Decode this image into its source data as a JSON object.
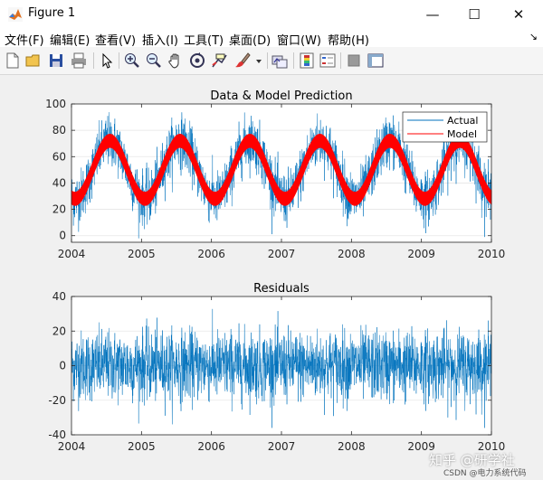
{
  "window": {
    "title": "Figure 1"
  },
  "window_buttons": {
    "minimize": "—",
    "maximize": "☐",
    "close": "✕"
  },
  "menu": {
    "items": [
      "文件(F)",
      "编辑(E)",
      "查看(V)",
      "插入(I)",
      "工具(T)",
      "桌面(D)",
      "窗口(W)",
      "帮助(H)"
    ],
    "more_arrow": "↘"
  },
  "toolbar": {
    "icons": [
      "new-figure-icon",
      "open-file-icon",
      "save-icon",
      "print-icon",
      "edit-plot-arrow-icon",
      "zoom-in-icon",
      "zoom-out-icon",
      "pan-hand-icon",
      "rotate-3d-icon",
      "data-cursor-icon",
      "brush-icon",
      "brush-dropdown-icon",
      "link-plot-icon",
      "colorbar-icon",
      "legend-icon",
      "hide-plot-tools-icon",
      "show-plot-tools-icon"
    ]
  },
  "colors": {
    "actual": "#0072bd",
    "model": "#ff0000"
  },
  "chart_data": [
    {
      "type": "line",
      "title": "Data & Model Prediction",
      "xlabel": "",
      "ylabel": "",
      "xlim": [
        2004,
        2010
      ],
      "ylim": [
        -5,
        100
      ],
      "xticks": [
        "2004",
        "2005",
        "2006",
        "2007",
        "2008",
        "2009",
        "2010"
      ],
      "yticks": [
        "0",
        "20",
        "40",
        "60",
        "80",
        "100"
      ],
      "legend": {
        "position": "top-right",
        "entries": [
          "Actual",
          "Model"
        ]
      },
      "series": [
        {
          "name": "Actual",
          "description": "daily observations, seasonal cycle ~25–75 with noise, min ~-2, max ~95"
        },
        {
          "name": "Model",
          "description": "seasonal sinusoid, trough ~28 in Jan, peak ~72 in Jul"
        }
      ],
      "model": {
        "mean": 50,
        "amplitude": 22,
        "band_halfwidth": 5,
        "peak_offset_years": 0.55
      },
      "actual_noise_sd": 10
    },
    {
      "type": "line",
      "title": "Residuals",
      "xlim": [
        2004,
        2010
      ],
      "ylim": [
        -40,
        40
      ],
      "xticks": [
        "2004",
        "2005",
        "2006",
        "2007",
        "2008",
        "2009",
        "2010"
      ],
      "yticks": [
        "-40",
        "-20",
        "0",
        "20",
        "40"
      ],
      "series": [
        {
          "name": "Residuals",
          "description": "noise around 0, range about -35 to 35"
        }
      ],
      "noise_sd": 10
    }
  ],
  "watermark": {
    "main": "知乎 @研学社",
    "sub": "CSDN @电力系统代码"
  }
}
